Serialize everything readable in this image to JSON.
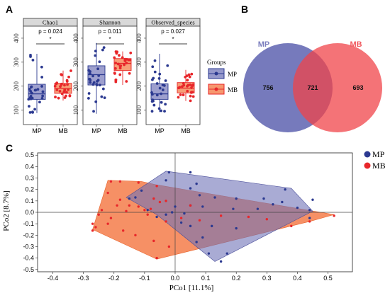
{
  "panels": {
    "a": "A",
    "b": "B",
    "c": "C"
  },
  "colors": {
    "mp": "#2b3990",
    "mb": "#e8262a",
    "mp_fill": "#6f73b8",
    "mb_fill": "#f05a5f",
    "orange": "#f47d4a"
  },
  "chart_data": [
    {
      "type": "box",
      "y_ticks": [
        100,
        200,
        300,
        400
      ],
      "ylim": [
        40,
        450
      ],
      "categories": [
        "MP",
        "MB"
      ],
      "legend": {
        "title": "Groups",
        "entries": [
          "MP",
          "MB"
        ]
      },
      "facets": [
        {
          "title": "Chao1",
          "pvalue": "p = 0.024",
          "sig": "*",
          "boxes": [
            {
              "group": "MP",
              "q1": 145,
              "median": 168,
              "q3": 208,
              "whisker_low": 88,
              "whisker_high": 335
            },
            {
              "group": "MB",
              "q1": 170,
              "median": 190,
              "q3": 212,
              "whisker_low": 140,
              "whisker_high": 265
            }
          ]
        },
        {
          "title": "Shannon",
          "pvalue": "p = 0.011",
          "sig": "*",
          "boxes": [
            {
              "group": "MP",
              "q1": 205,
              "median": 248,
              "q3": 285,
              "whisker_low": 85,
              "whisker_high": 380
            },
            {
              "group": "MB",
              "q1": 265,
              "median": 295,
              "q3": 315,
              "whisker_low": 205,
              "whisker_high": 345
            }
          ]
        },
        {
          "title": "Observed_species",
          "pvalue": "p = 0.027",
          "sig": "*",
          "boxes": [
            {
              "group": "MP",
              "q1": 145,
              "median": 168,
              "q3": 210,
              "whisker_low": 92,
              "whisker_high": 335
            },
            {
              "group": "MB",
              "q1": 172,
              "median": 192,
              "q3": 215,
              "whisker_low": 138,
              "whisker_high": 268
            }
          ]
        }
      ]
    },
    {
      "type": "venn",
      "sets": [
        {
          "name": "MP",
          "only": 756
        },
        {
          "name": "MB",
          "only": 693
        }
      ],
      "shared": 721
    },
    {
      "type": "scatter",
      "xlabel": "PCo1 [11.1%]",
      "ylabel": "PCo2 [8.7%]",
      "xlim": [
        -0.45,
        0.58
      ],
      "ylim": [
        -0.52,
        0.52
      ],
      "x_ticks": [
        -0.4,
        -0.3,
        -0.2,
        -0.1,
        0.0,
        0.1,
        0.2,
        0.3,
        0.4,
        0.5
      ],
      "y_ticks": [
        0.5,
        0.4,
        0.3,
        0.2,
        0.1,
        0.0,
        -0.1,
        -0.2,
        -0.3,
        -0.4,
        -0.5
      ],
      "legend": [
        "MP",
        "MB"
      ],
      "series": [
        {
          "name": "MP",
          "points": [
            [
              -0.15,
              0.12
            ],
            [
              -0.13,
              0.13
            ],
            [
              -0.11,
              0.19
            ],
            [
              -0.03,
              0.28
            ],
            [
              -0.02,
              0.35
            ],
            [
              0.05,
              0.35
            ],
            [
              0.07,
              0.25
            ],
            [
              0.05,
              0.21
            ],
            [
              0.08,
              0.15
            ],
            [
              0.13,
              0.13
            ],
            [
              0.2,
              0.12
            ],
            [
              0.29,
              0.12
            ],
            [
              0.36,
              0.2
            ],
            [
              0.35,
              0.09
            ],
            [
              0.32,
              0.07
            ],
            [
              0.4,
              0.04
            ],
            [
              0.44,
              0.02
            ],
            [
              0.45,
              0.11
            ],
            [
              0.44,
              -0.05
            ],
            [
              0.27,
              0.03
            ],
            [
              0.19,
              0.03
            ],
            [
              0.09,
              0.05
            ],
            [
              0.05,
              0.06
            ],
            [
              0.0,
              0.05
            ],
            [
              0.03,
              -0.01
            ],
            [
              -0.01,
              0.0
            ],
            [
              -0.03,
              -0.02
            ],
            [
              -0.06,
              -0.04
            ],
            [
              0.02,
              -0.09
            ],
            [
              0.05,
              -0.12
            ],
            [
              0.12,
              -0.12
            ],
            [
              0.2,
              -0.14
            ],
            [
              0.09,
              -0.22
            ],
            [
              0.07,
              -0.26
            ],
            [
              0.11,
              -0.36
            ],
            [
              0.15,
              -0.43
            ],
            [
              0.17,
              -0.36
            ],
            [
              -0.09,
              0.02
            ]
          ],
          "hull": [
            [
              -0.16,
              0.13
            ],
            [
              -0.03,
              0.36
            ],
            [
              0.38,
              0.21
            ],
            [
              0.45,
              0.01
            ],
            [
              0.13,
              -0.43
            ],
            [
              -0.06,
              -0.02
            ]
          ]
        },
        {
          "name": "MB",
          "points": [
            [
              -0.21,
              0.27
            ],
            [
              -0.18,
              0.27
            ],
            [
              -0.12,
              0.26
            ],
            [
              -0.06,
              0.23
            ],
            [
              -0.22,
              0.17
            ],
            [
              -0.18,
              0.11
            ],
            [
              -0.15,
              0.06
            ],
            [
              -0.12,
              0.05
            ],
            [
              -0.07,
              0.12
            ],
            [
              -0.03,
              0.1
            ],
            [
              -0.08,
              0.03
            ],
            [
              -0.1,
              0.02
            ],
            [
              -0.19,
              0.06
            ],
            [
              -0.24,
              0.02
            ],
            [
              -0.25,
              -0.02
            ],
            [
              -0.21,
              -0.05
            ],
            [
              -0.22,
              -0.1
            ],
            [
              -0.17,
              -0.16
            ],
            [
              -0.13,
              -0.2
            ],
            [
              -0.27,
              -0.16
            ],
            [
              -0.26,
              -0.13
            ],
            [
              -0.27,
              -0.1
            ],
            [
              -0.07,
              -0.25
            ],
            [
              -0.02,
              -0.3
            ],
            [
              -0.06,
              -0.4
            ],
            [
              0.02,
              -0.05
            ],
            [
              0.08,
              -0.07
            ],
            [
              0.15,
              -0.03
            ],
            [
              0.24,
              -0.04
            ],
            [
              0.3,
              -0.06
            ],
            [
              0.38,
              -0.12
            ],
            [
              0.52,
              -0.03
            ],
            [
              0.44,
              -0.08
            ],
            [
              -0.09,
              -0.02
            ],
            [
              -0.16,
              0.01
            ],
            [
              -0.05,
              0.09
            ],
            [
              0.05,
              0.06
            ],
            [
              -0.03,
              -0.08
            ]
          ],
          "hull": [
            [
              -0.27,
              -0.15
            ],
            [
              -0.22,
              0.28
            ],
            [
              -0.11,
              0.27
            ],
            [
              -0.06,
              0.24
            ],
            [
              0.52,
              -0.02
            ],
            [
              0.44,
              -0.08
            ],
            [
              -0.06,
              -0.41
            ]
          ]
        }
      ]
    }
  ]
}
